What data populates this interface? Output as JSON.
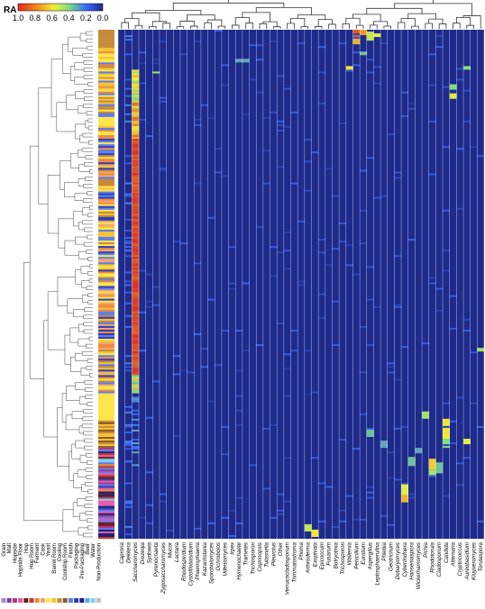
{
  "colors": {
    "background": "#ffffff",
    "heat_low": "#1e2a8c",
    "heat_mid": "#3a6cff",
    "heat_green": "#7fe07a",
    "heat_yellow": "#f3ef3a",
    "heat_orange": "#f08a1e",
    "heat_high": "#e52a1e",
    "dendrogram": "#333333",
    "separator": "#ffffff"
  },
  "chart_data": {
    "type": "heatmap",
    "legend": {
      "title": "RA",
      "ticks": [
        "1.0",
        "0.8",
        "0.6",
        "0.4",
        "0.2",
        "0.0"
      ],
      "range": [
        0,
        1
      ],
      "placement": "top-left"
    },
    "value_name": "RA",
    "columns": [
      "Caproria",
      "Dekkera",
      "Saccharomyces",
      "Diozeqia",
      "Sydowia",
      "Pyrenochaeta",
      "Zygosaccharomyces",
      "Mucor",
      "Lactaria",
      "Rhodospiridium",
      "Cystofilobasidium",
      "Phaeosphaeria",
      "Kazachstania",
      "Sporobolomyces",
      "Ochrobolos",
      "Udeniomyces",
      "Irpex",
      "Hymenochaete",
      "Trametes",
      "Trichosporon",
      "Coprinopsis",
      "Tulasnella",
      "Pleurotus",
      "Other",
      "Verrucocladosporium",
      "Trimmatostroma",
      "Phoma",
      "Arthroderma",
      "Exophiala",
      "Epicoccum",
      "Fusarium",
      "Botryotinia",
      "Trichosporon",
      "Wallemia",
      "Penicillium",
      "Eurotium",
      "Aspergillus",
      "Leptosphaerulina",
      "Phlebia",
      "Geotrichum",
      "Debaryomyces",
      "Cyberlindnera",
      "Hanseniaspora",
      "Wickerhamomyces",
      "Pichia",
      "Rhodotorula",
      "Cladosporium",
      "Candida",
      "Alternaria",
      "Cryptococcus",
      "Aureobasidium",
      "Kluyveromyces",
      "Torulaspora"
    ],
    "row_groups": [
      "Grain",
      "Malt",
      "Hopside",
      "Hopside Floor",
      "Hop",
      "Hop Room",
      "Ferment",
      "Cask",
      "Yeast",
      "Barrel Room",
      "Cooling",
      "Coolship Room",
      "Finish",
      "Packaging",
      "Pre-Packaging",
      "Beer",
      "Water",
      "Non-Production"
    ],
    "row_group_colors": [
      "#9a8bd0",
      "#7b3fa0",
      "#b8357a",
      "#e85aa8",
      "#6e1f1f",
      "#c23b2a",
      "#f08a3c",
      "#f3a66a",
      "#ffe54a",
      "#f6c233",
      "#c78a3a",
      "#8a5a2b",
      "#5b7ef0",
      "#2e3fb8",
      "#1a2380",
      "#63a5e8",
      "#7cd0f0",
      "#c0c0c0"
    ],
    "column_dendrogram": true,
    "row_dendrogram": true
  }
}
